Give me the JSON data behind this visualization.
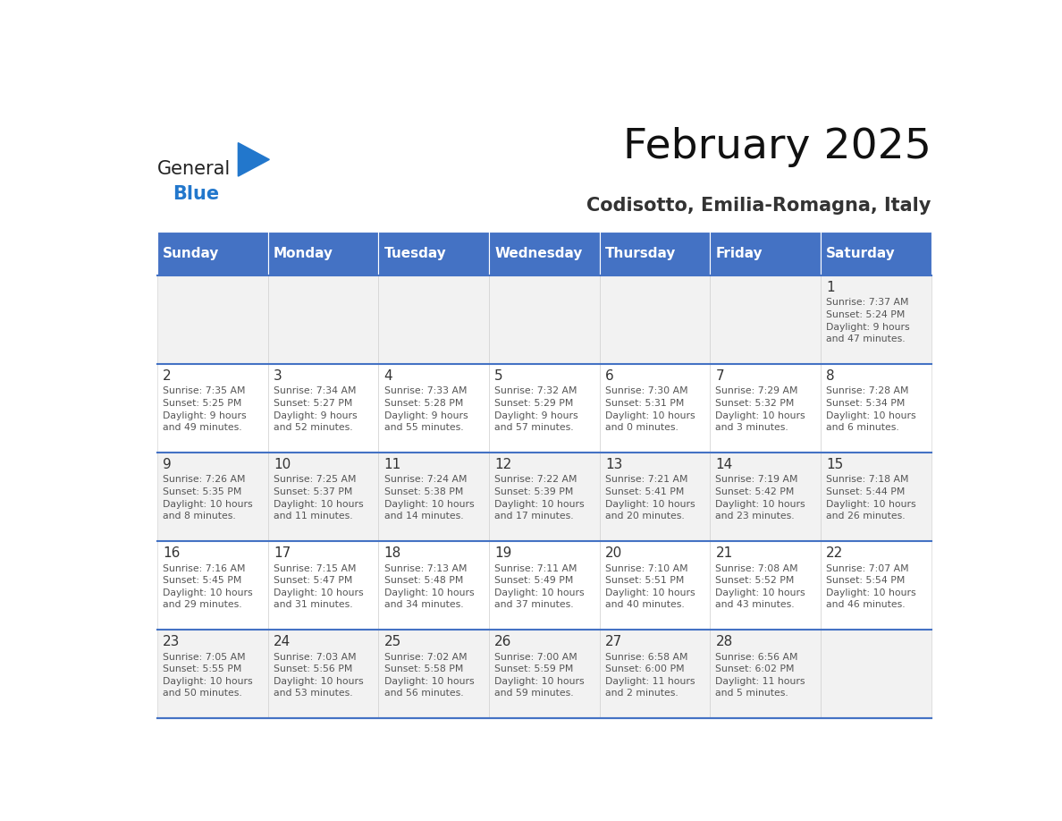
{
  "title": "February 2025",
  "subtitle": "Codisotto, Emilia-Romagna, Italy",
  "header_bg": "#4472C4",
  "header_text": "#FFFFFF",
  "row_bg_odd": "#F2F2F2",
  "row_bg_even": "#FFFFFF",
  "cell_text": "#555555",
  "day_number_color": "#333333",
  "days_of_week": [
    "Sunday",
    "Monday",
    "Tuesday",
    "Wednesday",
    "Thursday",
    "Friday",
    "Saturday"
  ],
  "week_rows": [
    [
      null,
      null,
      null,
      null,
      null,
      null,
      {
        "day": 1,
        "sunrise": "7:37 AM",
        "sunset": "5:24 PM",
        "daylight": "9 hours\nand 47 minutes."
      }
    ],
    [
      {
        "day": 2,
        "sunrise": "7:35 AM",
        "sunset": "5:25 PM",
        "daylight": "9 hours\nand 49 minutes."
      },
      {
        "day": 3,
        "sunrise": "7:34 AM",
        "sunset": "5:27 PM",
        "daylight": "9 hours\nand 52 minutes."
      },
      {
        "day": 4,
        "sunrise": "7:33 AM",
        "sunset": "5:28 PM",
        "daylight": "9 hours\nand 55 minutes."
      },
      {
        "day": 5,
        "sunrise": "7:32 AM",
        "sunset": "5:29 PM",
        "daylight": "9 hours\nand 57 minutes."
      },
      {
        "day": 6,
        "sunrise": "7:30 AM",
        "sunset": "5:31 PM",
        "daylight": "10 hours\nand 0 minutes."
      },
      {
        "day": 7,
        "sunrise": "7:29 AM",
        "sunset": "5:32 PM",
        "daylight": "10 hours\nand 3 minutes."
      },
      {
        "day": 8,
        "sunrise": "7:28 AM",
        "sunset": "5:34 PM",
        "daylight": "10 hours\nand 6 minutes."
      }
    ],
    [
      {
        "day": 9,
        "sunrise": "7:26 AM",
        "sunset": "5:35 PM",
        "daylight": "10 hours\nand 8 minutes."
      },
      {
        "day": 10,
        "sunrise": "7:25 AM",
        "sunset": "5:37 PM",
        "daylight": "10 hours\nand 11 minutes."
      },
      {
        "day": 11,
        "sunrise": "7:24 AM",
        "sunset": "5:38 PM",
        "daylight": "10 hours\nand 14 minutes."
      },
      {
        "day": 12,
        "sunrise": "7:22 AM",
        "sunset": "5:39 PM",
        "daylight": "10 hours\nand 17 minutes."
      },
      {
        "day": 13,
        "sunrise": "7:21 AM",
        "sunset": "5:41 PM",
        "daylight": "10 hours\nand 20 minutes."
      },
      {
        "day": 14,
        "sunrise": "7:19 AM",
        "sunset": "5:42 PM",
        "daylight": "10 hours\nand 23 minutes."
      },
      {
        "day": 15,
        "sunrise": "7:18 AM",
        "sunset": "5:44 PM",
        "daylight": "10 hours\nand 26 minutes."
      }
    ],
    [
      {
        "day": 16,
        "sunrise": "7:16 AM",
        "sunset": "5:45 PM",
        "daylight": "10 hours\nand 29 minutes."
      },
      {
        "day": 17,
        "sunrise": "7:15 AM",
        "sunset": "5:47 PM",
        "daylight": "10 hours\nand 31 minutes."
      },
      {
        "day": 18,
        "sunrise": "7:13 AM",
        "sunset": "5:48 PM",
        "daylight": "10 hours\nand 34 minutes."
      },
      {
        "day": 19,
        "sunrise": "7:11 AM",
        "sunset": "5:49 PM",
        "daylight": "10 hours\nand 37 minutes."
      },
      {
        "day": 20,
        "sunrise": "7:10 AM",
        "sunset": "5:51 PM",
        "daylight": "10 hours\nand 40 minutes."
      },
      {
        "day": 21,
        "sunrise": "7:08 AM",
        "sunset": "5:52 PM",
        "daylight": "10 hours\nand 43 minutes."
      },
      {
        "day": 22,
        "sunrise": "7:07 AM",
        "sunset": "5:54 PM",
        "daylight": "10 hours\nand 46 minutes."
      }
    ],
    [
      {
        "day": 23,
        "sunrise": "7:05 AM",
        "sunset": "5:55 PM",
        "daylight": "10 hours\nand 50 minutes."
      },
      {
        "day": 24,
        "sunrise": "7:03 AM",
        "sunset": "5:56 PM",
        "daylight": "10 hours\nand 53 minutes."
      },
      {
        "day": 25,
        "sunrise": "7:02 AM",
        "sunset": "5:58 PM",
        "daylight": "10 hours\nand 56 minutes."
      },
      {
        "day": 26,
        "sunrise": "7:00 AM",
        "sunset": "5:59 PM",
        "daylight": "10 hours\nand 59 minutes."
      },
      {
        "day": 27,
        "sunrise": "6:58 AM",
        "sunset": "6:00 PM",
        "daylight": "11 hours\nand 2 minutes."
      },
      {
        "day": 28,
        "sunrise": "6:56 AM",
        "sunset": "6:02 PM",
        "daylight": "11 hours\nand 5 minutes."
      },
      null
    ]
  ],
  "logo_general_color": "#222222",
  "logo_blue_color": "#2277CC",
  "separator_color": "#4472C4",
  "cell_border_color": "#CCCCCC"
}
